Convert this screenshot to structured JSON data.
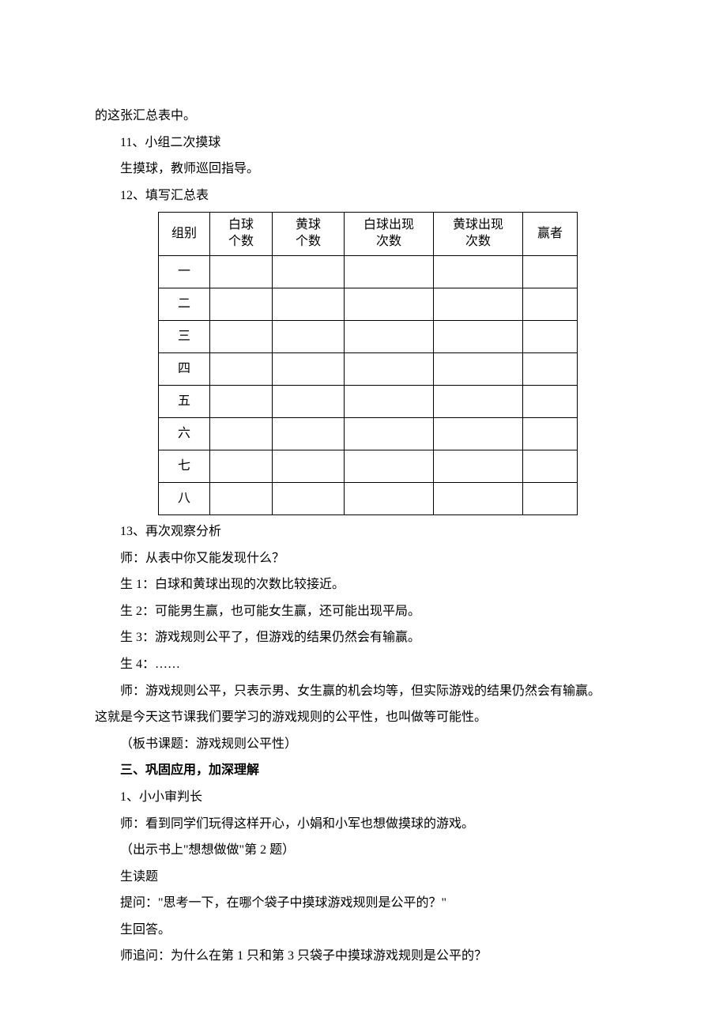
{
  "para": {
    "l1": "的这张汇总表中。",
    "l2": "11、小组二次摸球",
    "l3": "生摸球，教师巡回指导。",
    "l4": "12、填写汇总表",
    "l5": "13、再次观察分析",
    "l6": "师：从表中你又能发现什么？",
    "l7": "生 1：白球和黄球出现的次数比较接近。",
    "l8": "生 2：可能男生赢，也可能女生赢，还可能出现平局。",
    "l9": "生 3：游戏规则公平了，但游戏的结果仍然会有输赢。",
    "l10": "生 4：……",
    "l11": "师：游戏规则公平，只表示男、女生赢的机会均等，但实际游戏的结果仍然会有输赢。",
    "l12": "这就是今天这节课我们要学习的游戏规则的公平性，也叫做等可能性。",
    "l13": "（板书课题：游戏规则公平性）",
    "h3": "三、巩固应用，加深理解",
    "l14": "1、小小审判长",
    "l15": "师：看到同学们玩得这样开心，小娟和小军也想做摸球的游戏。",
    "l16": "（出示书上\"想想做做\"第 2 题）",
    "l17": "生读题",
    "l18": "提问：\"思考一下，在哪个袋子中摸球游戏规则是公平的？\"",
    "l19": "生回答。",
    "l20": "师追问：为什么在第 1 只和第 3 只袋子中摸球游戏规则是公平的？"
  },
  "table": {
    "headers": {
      "group": "组别",
      "white_a": "白球",
      "white_b": "个数",
      "yellow_a": "黄球",
      "yellow_b": "个数",
      "whitecnt_a": "白球出现",
      "whitecnt_b": "次数",
      "yellowcnt_a": "黄球出现",
      "yellowcnt_b": "次数",
      "winner": "赢者"
    },
    "rows": [
      "一",
      "二",
      "三",
      "四",
      "五",
      "六",
      "七",
      "八"
    ]
  }
}
